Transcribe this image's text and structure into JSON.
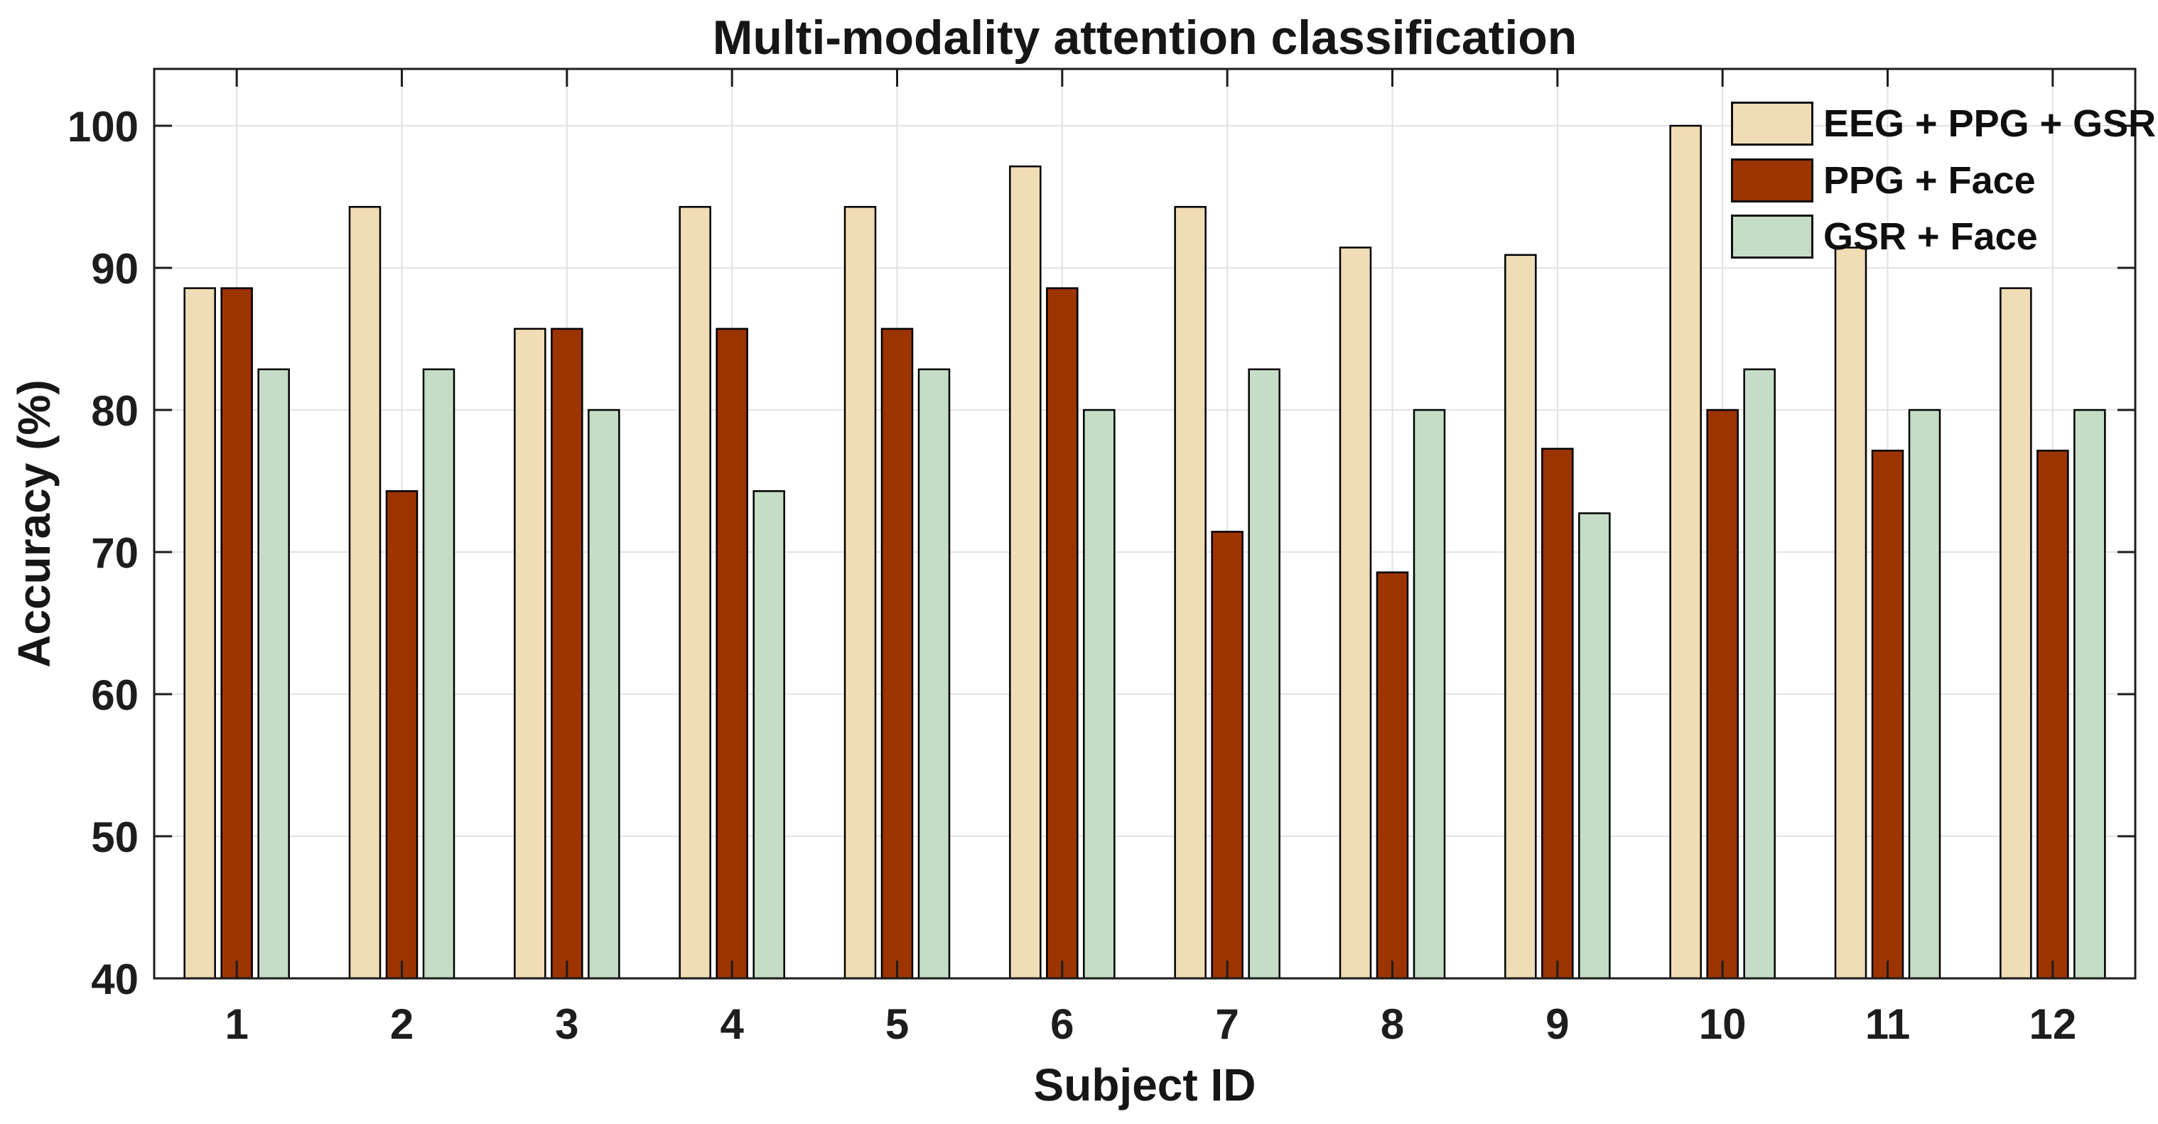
{
  "chart_data": {
    "type": "bar",
    "title": "Multi-modality attention classification",
    "xlabel": "Subject ID",
    "ylabel": "Accuracy (%)",
    "categories": [
      "1",
      "2",
      "3",
      "4",
      "5",
      "6",
      "7",
      "8",
      "9",
      "10",
      "11",
      "12"
    ],
    "series": [
      {
        "name": "EEG + PPG + GSR",
        "color": "#F0DCB5",
        "values": [
          88.57,
          94.29,
          85.71,
          94.29,
          94.29,
          97.14,
          94.29,
          91.43,
          90.91,
          100.0,
          91.43,
          88.57
        ]
      },
      {
        "name": "PPG + Face",
        "color": "#9C3400",
        "values": [
          88.57,
          74.29,
          85.71,
          85.71,
          85.71,
          88.57,
          71.43,
          68.57,
          77.27,
          80.0,
          77.14,
          77.14
        ]
      },
      {
        "name": "GSR + Face",
        "color": "#C5DCC7",
        "values": [
          82.86,
          82.86,
          80.0,
          74.29,
          82.86,
          80.0,
          82.86,
          80.0,
          72.73,
          82.86,
          80.0,
          80.0
        ]
      }
    ],
    "ylim": [
      40,
      104
    ],
    "yticks": [
      40,
      50,
      60,
      70,
      80,
      90,
      100
    ],
    "grid": true,
    "legend_position": "top-right-inside",
    "style": {
      "axis_color": "#1d1d1d",
      "grid_color": "#e0e0e0",
      "bar_edge_color": "#000000",
      "background": "#ffffff",
      "text_color": "#161616"
    }
  }
}
